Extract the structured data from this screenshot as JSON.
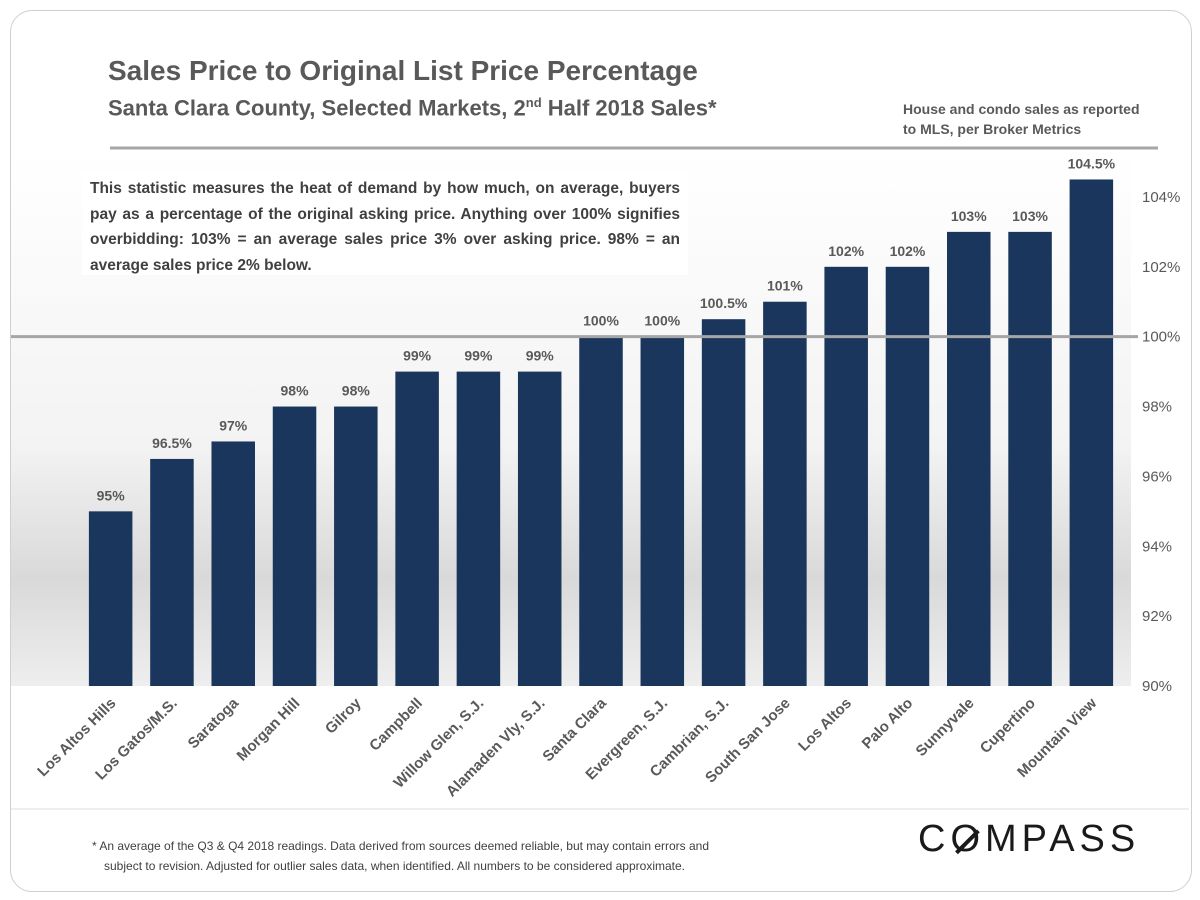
{
  "header": {
    "title": "Sales Price to Original List Price Percentage",
    "subtitle_pre": "Santa Clara County, Selected Markets, 2",
    "subtitle_sup": "nd",
    "subtitle_post": " Half 2018 Sales*",
    "source_line1": "House and condo sales as reported",
    "source_line2": "to MLS, per Broker Metrics"
  },
  "note": "This statistic measures the heat of demand by how much, on average, buyers pay as a percentage of the original asking price. Anything over 100% signifies overbidding:  103% = an average sales price 3% over asking price. 98% = an average sales price 2% below.",
  "footnote": {
    "line1": "* An average of the Q3 & Q4 2018 readings. Data derived from sources deemed reliable, but may contain errors and",
    "line2": "subject to revision. Adjusted for outlier sales data, when identified. All numbers to be considered approximate."
  },
  "brand": {
    "pre": "C",
    "o": "O",
    "post": "MPASS"
  },
  "colors": {
    "bar": "#1b365d",
    "text": "#595959",
    "label": "#595959",
    "refline": "#a6a6a6"
  },
  "chart_data": {
    "type": "bar",
    "title": "Sales Price to Original List Price Percentage",
    "categories": [
      "Los Altos Hills",
      "Los Gatos/M.S.",
      "Saratoga",
      "Morgan Hill",
      "Gilroy",
      "Campbell",
      "Willow Glen, S.J.",
      "Alamaden Vly, S.J.",
      "Santa Clara",
      "Evergreen, S.J.",
      "Cambrian, S.J.",
      "South San Jose",
      "Los Altos",
      "Palo Alto",
      "Sunnyvale",
      "Cupertino",
      "Mountain View"
    ],
    "values": [
      95,
      96.5,
      97,
      98,
      98,
      99,
      99,
      99,
      100,
      100,
      100.5,
      101,
      102,
      102,
      103,
      103,
      104.5
    ],
    "data_labels": [
      "95%",
      "96.5%",
      "97%",
      "98%",
      "98%",
      "99%",
      "99%",
      "99%",
      "100%",
      "100%",
      "100.5%",
      "101%",
      "102%",
      "102%",
      "103%",
      "103%",
      "104.5%"
    ],
    "y_ticks": [
      90,
      92,
      94,
      96,
      98,
      100,
      102,
      104
    ],
    "y_tick_labels": [
      "90%",
      "92%",
      "94%",
      "96%",
      "98%",
      "100%",
      "102%",
      "104%"
    ],
    "ylim": [
      90,
      105
    ],
    "reference_line": 100,
    "xlabel": "",
    "ylabel": "",
    "y_axis_side": "right",
    "grid": false,
    "legend": "none"
  }
}
